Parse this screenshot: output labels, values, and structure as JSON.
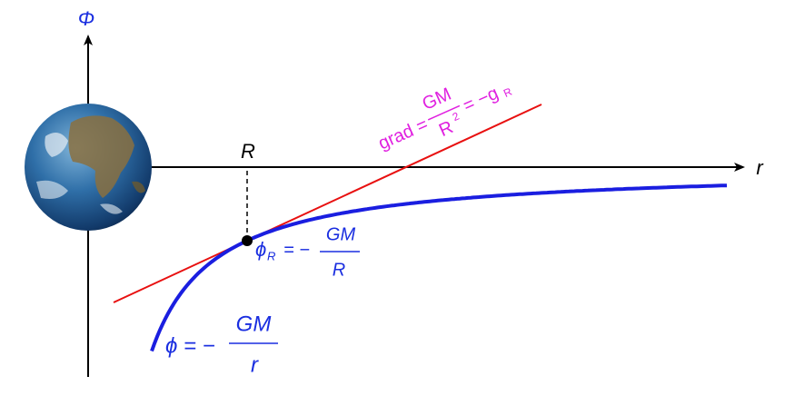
{
  "axes": {
    "y_label": "Φ",
    "x_label": "r",
    "R_label": "R"
  },
  "gradient_label": {
    "lhs": "grad =",
    "numerator": "GM",
    "denominator": "R",
    "exponent": "2",
    "rhs": "= −g",
    "subscript": "R"
  },
  "point_label": {
    "symbol": "ϕ",
    "subscript": "R",
    "equals": "= −",
    "numerator": "GM",
    "denominator": "R"
  },
  "curve_label": {
    "lhs": "ϕ = −",
    "numerator": "GM",
    "denominator": "r"
  }
}
